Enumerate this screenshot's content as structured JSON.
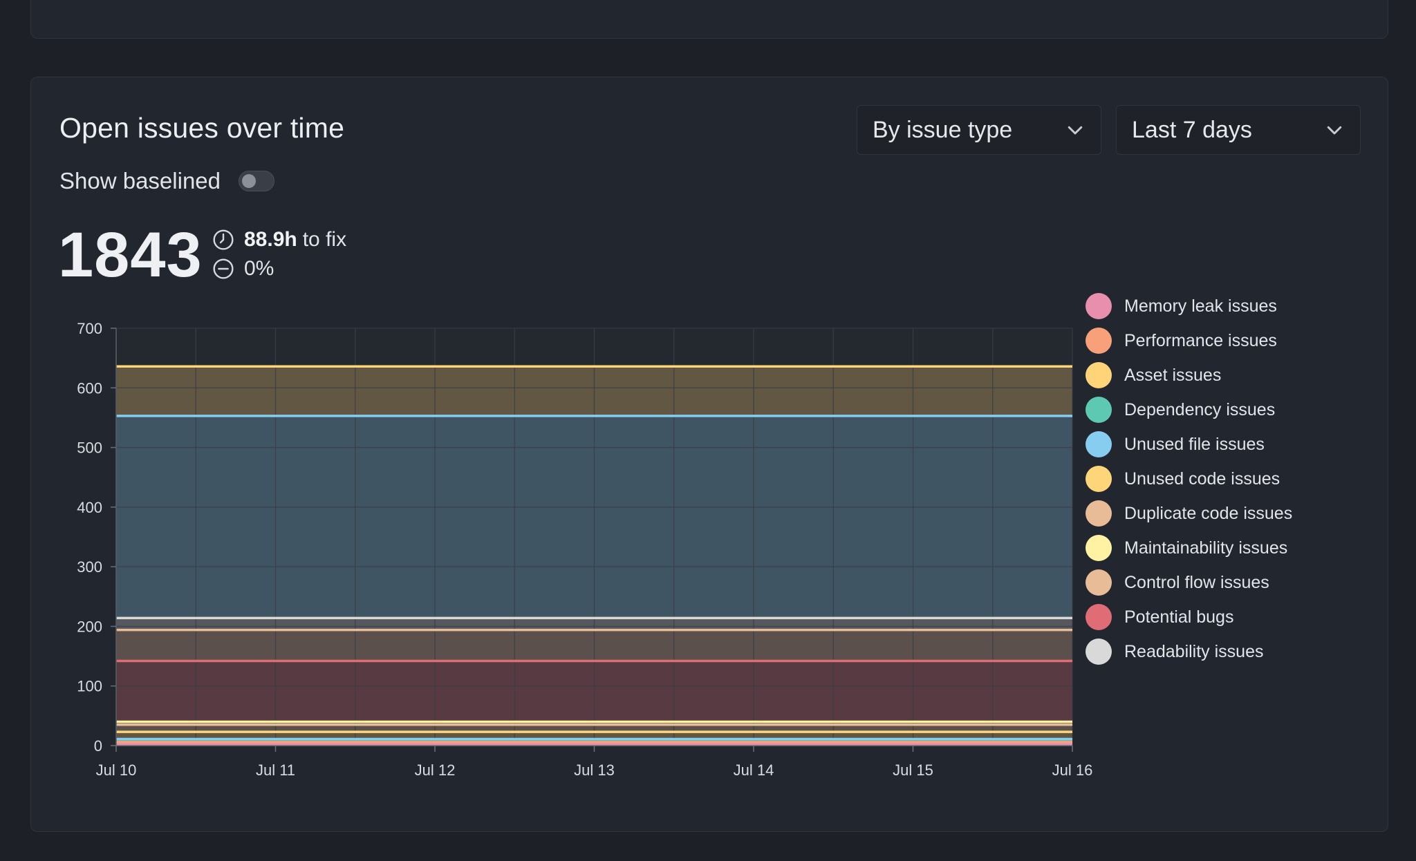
{
  "panel": {
    "title": "Open issues over time",
    "group_by": {
      "selected": "By issue type"
    },
    "time_range": {
      "selected": "Last 7 days"
    },
    "show_baselined": {
      "label": "Show baselined",
      "enabled": false
    },
    "total_open": "1843",
    "time_to_fix": {
      "value": "88.9h",
      "suffix": "to fix"
    },
    "change": "0%"
  },
  "chart_data": {
    "type": "area",
    "x": [
      "Jul 10",
      "Jul 11",
      "Jul 12",
      "Jul 13",
      "Jul 14",
      "Jul 15",
      "Jul 16"
    ],
    "ylim": [
      0,
      700
    ],
    "yticks": [
      0,
      100,
      200,
      300,
      400,
      500,
      600,
      700
    ],
    "stacked": true,
    "grid": true,
    "legend_position": "right",
    "series": [
      {
        "name": "Memory leak issues",
        "color": "#e98fae",
        "values": [
          2,
          2,
          2,
          2,
          2,
          2,
          2
        ]
      },
      {
        "name": "Performance issues",
        "color": "#f7a07a",
        "values": [
          4,
          4,
          4,
          4,
          4,
          4,
          4
        ]
      },
      {
        "name": "Asset issues",
        "color": "#ffd479",
        "values": [
          6,
          6,
          6,
          6,
          6,
          6,
          6
        ]
      },
      {
        "name": "Dependency issues",
        "color": "#5ec9b3",
        "values": [
          3,
          3,
          3,
          3,
          3,
          3,
          3
        ]
      },
      {
        "name": "Unused file issues",
        "color": "#86cdf0",
        "values": [
          4,
          4,
          4,
          4,
          4,
          4,
          4
        ]
      },
      {
        "name": "Unused code issues",
        "color": "#ffd579",
        "values": [
          12,
          12,
          12,
          12,
          12,
          12,
          12
        ]
      },
      {
        "name": "Duplicate code issues",
        "color": "#e9bc98",
        "values": [
          5,
          5,
          5,
          5,
          5,
          5,
          5
        ]
      },
      {
        "name": "Maintainability issues",
        "color": "#fff3a3",
        "values": [
          5,
          5,
          5,
          5,
          5,
          5,
          5
        ]
      },
      {
        "name": "Control flow issues",
        "color": "#e9bc98",
        "values": [
          0,
          0,
          0,
          0,
          0,
          0,
          0
        ]
      },
      {
        "name": "Potential bugs",
        "color": "#e06c75",
        "values": [
          101,
          101,
          101,
          101,
          101,
          101,
          101
        ]
      },
      {
        "name": "Readability issues",
        "color": "#d9d9d9",
        "values": [
          72,
          72,
          72,
          72,
          72,
          72,
          72
        ]
      }
    ],
    "visible_lines": [
      {
        "color": "#ffd579",
        "value": 636
      },
      {
        "color": "#86cdf0",
        "value": 553
      },
      {
        "color": "#d9d9d9",
        "value": 214
      },
      {
        "color": "#e9bc98",
        "value": 194
      },
      {
        "color": "#e06c75",
        "value": 142
      },
      {
        "color": "#fff3a3",
        "value": 40
      },
      {
        "color": "#e9bc98",
        "value": 35
      },
      {
        "color": "#ffd579",
        "value": 23
      },
      {
        "color": "#86cdf0",
        "value": 11
      },
      {
        "color": "#5ec9b3",
        "value": 7
      },
      {
        "color": "#f7a07a",
        "value": 6
      },
      {
        "color": "#e98fae",
        "value": 2
      }
    ],
    "bands": [
      {
        "color": "#ffd579",
        "from": 553,
        "to": 636
      },
      {
        "color": "#86cdf0",
        "from": 214,
        "to": 553
      },
      {
        "color": "#d9d9d9",
        "from": 194,
        "to": 214
      },
      {
        "color": "#e9bc98",
        "from": 142,
        "to": 194
      },
      {
        "color": "#e06c75",
        "from": 40,
        "to": 142
      },
      {
        "color": "#fff3a3",
        "from": 35,
        "to": 40
      },
      {
        "color": "#e9bc98",
        "from": 23,
        "to": 35
      },
      {
        "color": "#ffd579",
        "from": 11,
        "to": 23
      },
      {
        "color": "#86cdf0",
        "from": 7,
        "to": 11
      },
      {
        "color": "#5ec9b3",
        "from": 6,
        "to": 7
      },
      {
        "color": "#f7a07a",
        "from": 2,
        "to": 6
      },
      {
        "color": "#e98fae",
        "from": 0,
        "to": 2
      }
    ]
  }
}
